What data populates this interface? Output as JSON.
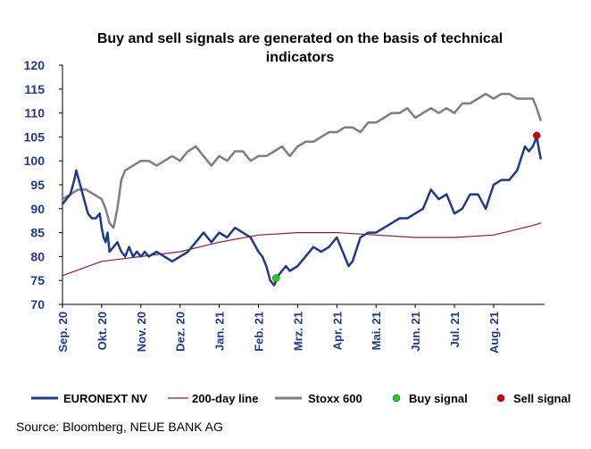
{
  "chart_data": {
    "type": "line",
    "title_line1": "Buy and sell signals are generated on the basis of technical",
    "title_line2": "indicators",
    "source": "Source: Bloomberg, NEUE BANK AG",
    "ylim": [
      70,
      120
    ],
    "yticks": [
      "70",
      "75",
      "80",
      "85",
      "90",
      "95",
      "100",
      "105",
      "110",
      "115",
      "120"
    ],
    "xlim": [
      0,
      12.3
    ],
    "xticks": [
      {
        "label": "Sep. 20",
        "pos": 0
      },
      {
        "label": "Okt. 20",
        "pos": 1
      },
      {
        "label": "Nov. 20",
        "pos": 2
      },
      {
        "label": "Dez. 20",
        "pos": 3
      },
      {
        "label": "Jan. 21",
        "pos": 4
      },
      {
        "label": "Feb. 21",
        "pos": 5
      },
      {
        "label": "Mrz. 21",
        "pos": 6
      },
      {
        "label": "Apr. 21",
        "pos": 7
      },
      {
        "label": "Mai. 21",
        "pos": 8
      },
      {
        "label": "Jun. 21",
        "pos": 9
      },
      {
        "label": "Jul. 21",
        "pos": 10
      },
      {
        "label": "Aug. 21",
        "pos": 11
      }
    ],
    "series": [
      {
        "name": "EURONEXT NV",
        "color": "#1f3a8a",
        "x": [
          0,
          0.1,
          0.2,
          0.3,
          0.35,
          0.45,
          0.55,
          0.65,
          0.75,
          0.85,
          0.95,
          1.0,
          1.05,
          1.1,
          1.15,
          1.2,
          1.3,
          1.4,
          1.5,
          1.6,
          1.7,
          1.8,
          1.9,
          2.0,
          2.1,
          2.2,
          2.4,
          2.6,
          2.8,
          3.0,
          3.2,
          3.4,
          3.6,
          3.8,
          4.0,
          4.2,
          4.4,
          4.6,
          4.8,
          5.0,
          5.1,
          5.2,
          5.3,
          5.4,
          5.5,
          5.6,
          5.7,
          5.8,
          6.0,
          6.2,
          6.4,
          6.6,
          6.8,
          7.0,
          7.1,
          7.2,
          7.3,
          7.4,
          7.6,
          7.8,
          8.0,
          8.2,
          8.4,
          8.6,
          8.8,
          9.0,
          9.2,
          9.4,
          9.6,
          9.8,
          10.0,
          10.2,
          10.4,
          10.6,
          10.8,
          11.0,
          11.2,
          11.4,
          11.6,
          11.8,
          11.9,
          12.0,
          12.1,
          12.2
        ],
        "values": [
          91,
          92,
          93,
          96,
          98,
          95,
          92,
          89,
          88,
          88,
          89,
          86,
          84,
          83,
          85,
          81,
          82,
          83,
          81,
          80,
          82,
          80,
          81,
          80,
          81,
          80,
          81,
          80,
          79,
          80,
          81,
          83,
          85,
          83,
          85,
          84,
          86,
          85,
          84,
          81,
          80,
          78,
          75,
          74,
          76,
          77,
          78,
          77,
          78,
          80,
          82,
          81,
          82,
          84,
          82,
          80,
          78,
          79,
          84,
          85,
          85,
          86,
          87,
          88,
          88,
          89,
          90,
          94,
          92,
          93,
          89,
          90,
          93,
          93,
          90,
          95,
          96,
          96,
          98,
          103,
          102,
          103,
          105,
          100.5
        ]
      },
      {
        "name": "200-day line",
        "color": "#8b1a3c",
        "x": [
          0,
          1,
          2,
          3,
          4,
          5,
          6,
          7,
          8,
          9,
          10,
          11,
          11.5,
          12,
          12.2
        ],
        "values": [
          76,
          79,
          80,
          81,
          83,
          84.5,
          85,
          85,
          84.5,
          84,
          84,
          84.5,
          85.5,
          86.5,
          87
        ]
      },
      {
        "name": "Stoxx 600",
        "color": "#7f7f7f",
        "x": [
          0,
          0.2,
          0.4,
          0.6,
          0.8,
          1.0,
          1.1,
          1.2,
          1.3,
          1.4,
          1.5,
          1.6,
          1.8,
          2.0,
          2.2,
          2.4,
          2.6,
          2.8,
          3.0,
          3.2,
          3.4,
          3.6,
          3.8,
          4.0,
          4.2,
          4.4,
          4.6,
          4.8,
          5.0,
          5.2,
          5.4,
          5.6,
          5.8,
          6.0,
          6.2,
          6.4,
          6.6,
          6.8,
          7.0,
          7.2,
          7.4,
          7.6,
          7.8,
          8.0,
          8.2,
          8.4,
          8.6,
          8.8,
          9.0,
          9.2,
          9.4,
          9.6,
          9.8,
          10.0,
          10.2,
          10.4,
          10.6,
          10.8,
          11.0,
          11.2,
          11.4,
          11.6,
          11.8,
          12.0,
          12.1,
          12.2
        ],
        "values": [
          92,
          93,
          94,
          94,
          93,
          92,
          90,
          87,
          86,
          90,
          96,
          98,
          99,
          100,
          100,
          99,
          100,
          101,
          100,
          102,
          103,
          101,
          99,
          101,
          100,
          102,
          102,
          100,
          101,
          101,
          102,
          103,
          101,
          103,
          104,
          104,
          105,
          106,
          106,
          107,
          107,
          106,
          108,
          108,
          109,
          110,
          110,
          111,
          109,
          110,
          111,
          110,
          111,
          110,
          112,
          112,
          113,
          114,
          113,
          114,
          114,
          113,
          113,
          113,
          111,
          108.5
        ]
      }
    ],
    "buy_signal": {
      "x": 5.45,
      "y": 75.5,
      "color": "#22cc22"
    },
    "sell_signal": {
      "x": 12.1,
      "y": 105.3,
      "color": "#cc0000"
    },
    "legend": [
      {
        "label": "EURONEXT NV",
        "kind": "line-thick",
        "color": "#1f3a8a"
      },
      {
        "label": "200-day line",
        "kind": "line-thin",
        "color": "#8b1a3c"
      },
      {
        "label": "Stoxx 600",
        "kind": "line-thick",
        "color": "#7f7f7f"
      },
      {
        "label": "Buy signal",
        "kind": "dot",
        "color": "#22cc22"
      },
      {
        "label": "Sell signal",
        "kind": "dot",
        "color": "#cc0000"
      }
    ]
  }
}
